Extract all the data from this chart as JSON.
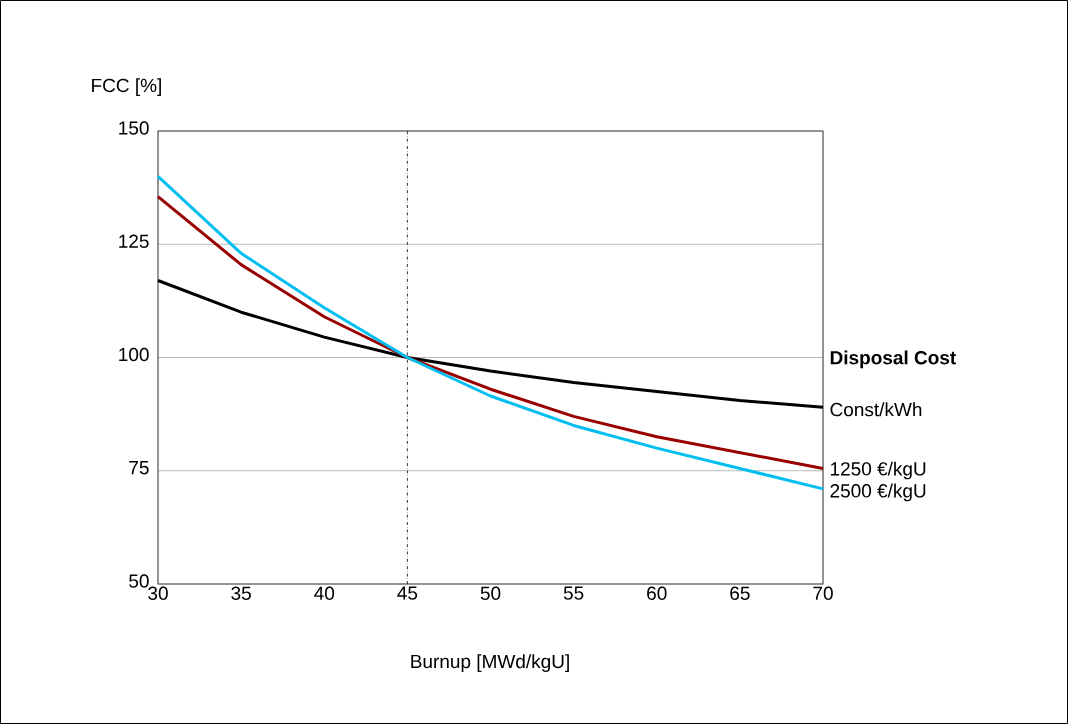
{
  "chart_data": {
    "type": "line",
    "xlabel": "Burnup [MWd/kgU]",
    "ylabel": "FCC [%]",
    "legend_title": "Disposal Cost",
    "x": [
      30,
      35,
      40,
      45,
      50,
      55,
      60,
      65,
      70
    ],
    "series": [
      {
        "name": "Const/kWh",
        "color": "#000000",
        "values": [
          117,
          110,
          104.5,
          100,
          97,
          94.5,
          92.5,
          90.5,
          89
        ]
      },
      {
        "name": "1250 €/kgU",
        "color": "#990000",
        "values": [
          135.5,
          120.5,
          109,
          100,
          93,
          87,
          82.5,
          79,
          75.5
        ]
      },
      {
        "name": "2500 €/kgU",
        "color": "#00bff0",
        "values": [
          140,
          123,
          111,
          100,
          91.5,
          85,
          80,
          75.5,
          71
        ]
      }
    ],
    "xlim": [
      30,
      70
    ],
    "ylim": [
      50,
      150
    ],
    "xticks": [
      30,
      35,
      40,
      45,
      50,
      55,
      60,
      65,
      70
    ],
    "yticks": [
      50,
      75,
      100,
      125,
      150
    ],
    "grid": "y",
    "ref_lines": [
      {
        "axis": "x",
        "value": 45,
        "line_style": "dashdot",
        "color": "#000000"
      }
    ]
  }
}
